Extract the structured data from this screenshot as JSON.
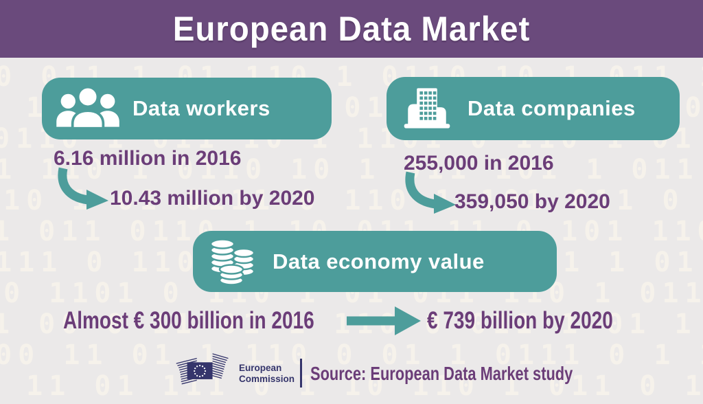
{
  "header": {
    "title": "European Data Market"
  },
  "colors": {
    "header_purple": "#6a4a7c",
    "teal": "#4d9d9b",
    "text_purple": "#6b3d78",
    "background_gray": "#ebe9e9",
    "pattern_cream": "#f6f2eb",
    "ec_navy": "#35356b",
    "white": "#ffffff"
  },
  "cards": {
    "workers": {
      "label": "Data workers",
      "icon": "people-icon",
      "stat_2016": "6.16 million in 2016",
      "stat_2020": "10.43 million by 2020"
    },
    "companies": {
      "label": "Data companies",
      "icon": "building-icon",
      "stat_2016": "255,000 in 2016",
      "stat_2020": "359,050 by 2020"
    },
    "economy": {
      "label": "Data economy value",
      "icon": "coins-icon",
      "stat_2016": "Almost € 300 billion in 2016",
      "stat_2020": "€ 739 billion by 2020"
    }
  },
  "footer": {
    "logo_line1": "European",
    "logo_line2": "Commission",
    "source": "Source: European Data Market study"
  },
  "background": {
    "binary_rows": [
      "1 0110 10 1 0011 101 1 10 110 0 111 01 10",
      "011 1 10 0110 1 101 011 0 1 1101 10 011 1",
      "10 011 1 01 110 1 0110 10 1 011 101 1 011",
      "1 101 0110 1 10 011 0 111 01 1 0110 10 01",
      "0110 1 011 10 1 1101 0 110 1 01 011 110 1",
      "01 110 1 0110 10 1 011 101 1 011 0 110 11",
      "110 1 01 0111 0 110 1 101 011 0 1 1101 10",
      "1 011 0110 1 10 011 11 0 101 1100 11 01 1",
      "0111 0 110 01 1 0110 11 101 1 01 110 1 01",
      "10 1101 0 110 1 01 011 110 1 0110 10 1 01",
      "1 00 0 11 01 1 110 0 011 1 01 1 0 011 1 1",
      "100 11 01 1 110 0 01 1 0111 0 1 1 0011 10",
      "0 11 01 111 0 1 10 110 1 011 0 1 110 1 01"
    ]
  }
}
